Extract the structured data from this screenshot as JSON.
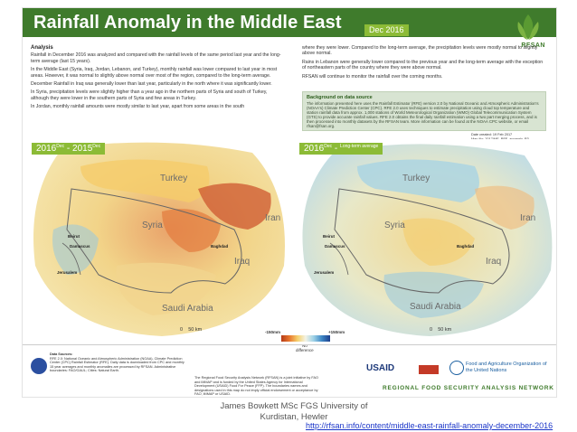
{
  "poster": {
    "title": "Rainfall Anomaly in the Middle East",
    "date_tag": "Dec 2016",
    "logo_text": "RFSAN"
  },
  "analysis": {
    "heading": "Analysis",
    "paragraphs": [
      "Rainfall in December 2016 was analyzed and compared with the rainfall levels of the same period last year and the long-term average (last 15 years).",
      "In the Middle East (Syria, Iraq, Jordan, Lebanon, and Turkey), monthly rainfall was lower compared to last year in most areas. However, it was normal to slightly above normal over most of the region, compared to the long-term average.",
      "December Rainfall in Iraq was generally lower than last year, particularly in the north where it was significantly lower.",
      "In Syria, precipitation levels were slightly higher than a year ago in the northern parts of Syria and south of Turkey, although they were lower in the southern parts of Syria and few areas in Turkey.",
      "In Jordan, monthly rainfall amounts were mostly similar to last year, apart from some areas in the south"
    ],
    "right_paragraphs": [
      "where they were lower. Compared to the long-term average, the precipitation levels were mostly normal to slightly above normal.",
      "Rains in Lebanon were generally lower compared to the previous year and the long-term average with the exception of northeastern parts of the country where they were above normal.",
      "RFSAN will continue to monitor the rainfall over the coming months."
    ]
  },
  "background": {
    "heading": "Background on data source",
    "text": "The information presented here uses the Rainfall Estimator (RFE) version 2.0 by National Oceanic and Atmospheric Administration's (NOAA's) Climate Prediction Center (CPC). RFE 2.0 uses techniques to estimate precipitation using cloud top temperature and station rainfall data from approx. 1,000 stations of World Meteorological Organization (WMO) Global Telecommunication System (GTS) to provide accurate rainfall values. RFE 2.0 obtains the final daily rainfall estimation using a two part merging process, and is then processed into monthly datasets by the RFSAN team. More information can be found at the NOAA CPC website, or email rfsan@fsan.org."
  },
  "meta": {
    "line1": "Date created: 19 Feb 2017",
    "line2": "Map No: 2017/ME_RFE_anomaly_R3",
    "line3": "Datum/Projection: UTM 37N"
  },
  "maps": [
    {
      "label": "2016",
      "sup1": "Dec",
      "mid": " - 2015",
      "sup2": "Dec"
    },
    {
      "label": "2016",
      "sup1": "Dec",
      "mid": " - ",
      "sup2": "Long-term average"
    }
  ],
  "places": {
    "turkey": "Turkey",
    "iran": "Iran",
    "syria": "Syria",
    "iraq": "Iraq",
    "saudi": "Saudi Arabia",
    "beirut": "Beirut",
    "damascus": "Damascus",
    "jerusalem": "Jerusalem",
    "baghdad": "Baghdad"
  },
  "scale": {
    "zero": "0",
    "fifty": "50",
    "unit": "km"
  },
  "legend": {
    "low": "-150mm",
    "high": "+150mm",
    "mid_1": "No",
    "mid_2": "difference"
  },
  "footer": {
    "sources_heading": "Data Sources:",
    "sources_text": "RFE 2.0: National Oceanic and Atmospheric Administration (NOAA), Climate Prediction Center (CPC) Rainfall Estimator (RFE). Daily data is downloaded from CPC and monthly 15 year averages and monthly anomalies are processed by RFSAN. Administrative boundaries: FAO/GAUL; Cities: Natural Earth.",
    "disclaimer": "The Regional Food Security Analysis Network (RFSAN) is a joint initiative by FAO and iMMAP and is funded by the United States Agency for International Development (USAID) Food For Peace (FFP). The boundaries names and designations used in this map do not imply official endorsement or acceptance by FAO, iMMAP or USAID.",
    "usaid": "USAID",
    "fao": "Food and Agriculture Organization of the United Nations",
    "network": "REGIONAL FOOD SECURITY ANALYSIS NETWORK"
  },
  "author": {
    "line1": "James Bowkett MSc FGS University of",
    "line2": "Kurdistan, Hewler"
  },
  "link": "http://rfsan.info/content/middle-east-rainfall-anomaly-december-2016"
}
